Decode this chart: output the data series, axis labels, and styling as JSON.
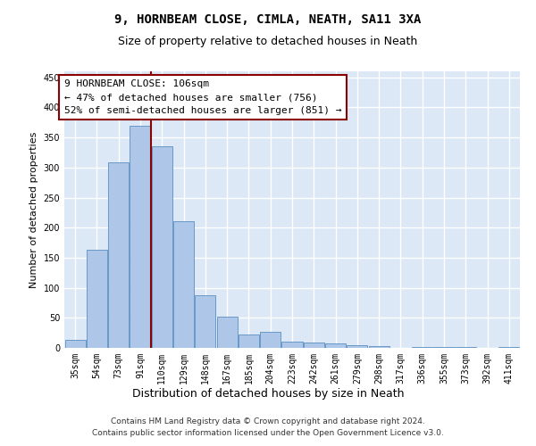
{
  "title": "9, HORNBEAM CLOSE, CIMLA, NEATH, SA11 3XA",
  "subtitle": "Size of property relative to detached houses in Neath",
  "xlabel": "Distribution of detached houses by size in Neath",
  "ylabel": "Number of detached properties",
  "bar_labels": [
    "35sqm",
    "54sqm",
    "73sqm",
    "91sqm",
    "110sqm",
    "129sqm",
    "148sqm",
    "167sqm",
    "185sqm",
    "204sqm",
    "223sqm",
    "242sqm",
    "261sqm",
    "279sqm",
    "298sqm",
    "317sqm",
    "336sqm",
    "355sqm",
    "373sqm",
    "392sqm",
    "411sqm"
  ],
  "bar_heights": [
    13,
    163,
    309,
    370,
    335,
    211,
    88,
    52,
    22,
    27,
    11,
    9,
    7,
    5,
    3,
    0,
    2,
    2,
    2,
    0,
    2
  ],
  "bar_color": "#aec6e8",
  "bar_edge_color": "#5a8fc2",
  "vline_x_index": 4,
  "vline_color": "#8b0000",
  "annotation_line1": "9 HORNBEAM CLOSE: 106sqm",
  "annotation_line2": "← 47% of detached houses are smaller (756)",
  "annotation_line3": "52% of semi-detached houses are larger (851) →",
  "annotation_box_color": "white",
  "annotation_box_edge_color": "#8b0000",
  "ylim": [
    0,
    460
  ],
  "yticks": [
    0,
    50,
    100,
    150,
    200,
    250,
    300,
    350,
    400,
    450
  ],
  "footer_line1": "Contains HM Land Registry data © Crown copyright and database right 2024.",
  "footer_line2": "Contains public sector information licensed under the Open Government Licence v3.0.",
  "bg_color": "#dce8f5",
  "grid_color": "white",
  "title_fontsize": 10,
  "subtitle_fontsize": 9,
  "xlabel_fontsize": 9,
  "ylabel_fontsize": 8,
  "tick_fontsize": 7,
  "footer_fontsize": 6.5,
  "annotation_fontsize": 8
}
